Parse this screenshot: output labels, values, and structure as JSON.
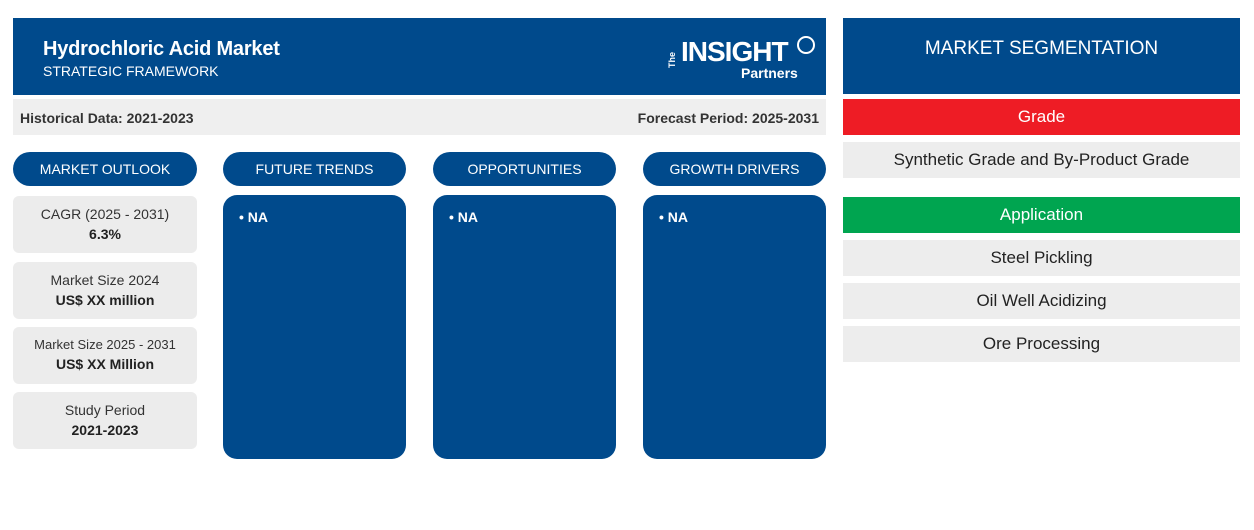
{
  "header": {
    "title": "Hydrochloric Acid Market",
    "subtitle": "STRATEGIC FRAMEWORK",
    "logo": {
      "the": "The",
      "insight": "INSIGHT",
      "partners": "Partners"
    }
  },
  "info": {
    "historical": "Historical Data: 2021-2023",
    "forecast": "Forecast Period: 2025-2031"
  },
  "columns": {
    "outlook": "MARKET OUTLOOK",
    "trends": "FUTURE TRENDS",
    "opportunities": "OPPORTUNITIES",
    "drivers": "GROWTH DRIVERS"
  },
  "outlook": [
    {
      "label": "CAGR (2025 - 2031)",
      "value": "6.3%"
    },
    {
      "label": "Market Size 2024",
      "value": "US$ XX million"
    },
    {
      "label": "Market Size 2025 - 2031",
      "value": "US$ XX Million"
    },
    {
      "label": "Study Period",
      "value": "2021-2023"
    }
  ],
  "panels": {
    "trends": "• NA",
    "opportunities": "• NA",
    "drivers": "• NA"
  },
  "segmentation": {
    "title": "MARKET SEGMENTATION",
    "categories": [
      {
        "name": "Grade",
        "color": "#ee1c25",
        "items": [
          "Synthetic Grade and By-Product Grade"
        ]
      },
      {
        "name": "Application",
        "color": "#00a550",
        "items": [
          "Steel Pickling",
          "Oil Well Acidizing",
          "Ore Processing"
        ]
      }
    ]
  },
  "colors": {
    "primary": "#004a8c",
    "panel_bg": "#efefef"
  }
}
